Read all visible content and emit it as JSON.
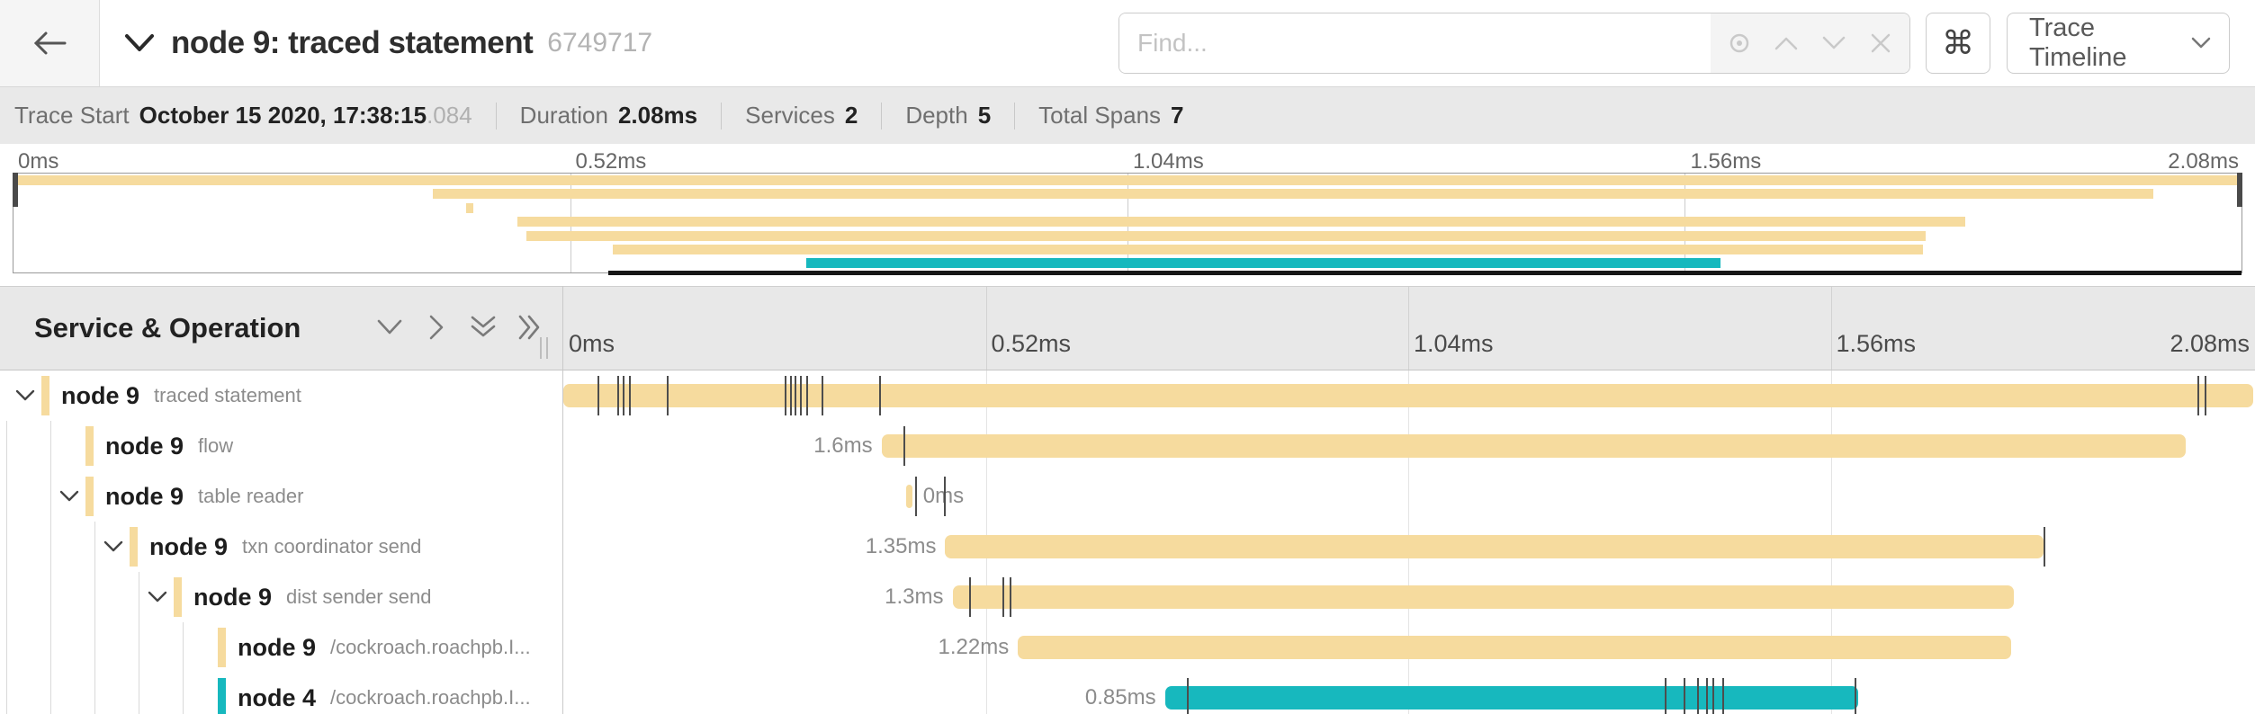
{
  "header": {
    "title": "node 9: traced statement",
    "trace_id": "6749717",
    "find_placeholder": "Find...",
    "view_selector_label": "Trace Timeline",
    "keyboard_shortcut_glyph": "⌘"
  },
  "summary": {
    "items": [
      {
        "label": "Trace Start",
        "value": "October 15 2020, 17:38:15",
        "suffix": ".084"
      },
      {
        "label": "Duration",
        "value": "2.08ms",
        "suffix": ""
      },
      {
        "label": "Services",
        "value": "2",
        "suffix": ""
      },
      {
        "label": "Depth",
        "value": "5",
        "suffix": ""
      },
      {
        "label": "Total Spans",
        "value": "7",
        "suffix": ""
      }
    ]
  },
  "ruler": {
    "labels": [
      "0ms",
      "0.52ms",
      "1.04ms",
      "1.56ms",
      "2.08ms"
    ],
    "positions_pct": [
      0,
      25,
      50,
      75,
      100
    ]
  },
  "left_header": {
    "title": "Service & Operation"
  },
  "colors": {
    "tan": "#f6db9e",
    "teal": "#17b8be"
  },
  "minimap": {
    "viewport_start_pct": 26.7
  },
  "spans": [
    {
      "service": "node 9",
      "operation": "traced statement",
      "depth": 0,
      "expandable": true,
      "color_key": "tan",
      "start_pct": 0,
      "width_pct": 100,
      "duration_label": "",
      "label_side": "none",
      "ticks_pct": [
        2.0,
        3.2,
        3.5,
        3.9,
        6.1,
        13.1,
        13.4,
        13.7,
        14.0,
        14.4,
        15.3,
        18.7,
        96.7,
        97.1
      ]
    },
    {
      "service": "node 9",
      "operation": "flow",
      "depth": 1,
      "expandable": false,
      "color_key": "tan",
      "start_pct": 18.83,
      "width_pct": 77.2,
      "duration_label": "1.6ms",
      "label_side": "left",
      "ticks_pct": [
        20.15
      ]
    },
    {
      "service": "node 9",
      "operation": "table reader",
      "depth": 1,
      "expandable": true,
      "color_key": "tan",
      "start_pct": 20.3,
      "width_pct": 0.35,
      "duration_label": "0ms",
      "label_side": "right",
      "ticks_pct": [
        20.8,
        22.5
      ]
    },
    {
      "service": "node 9",
      "operation": "txn coordinator send",
      "depth": 2,
      "expandable": true,
      "color_key": "tan",
      "start_pct": 22.6,
      "width_pct": 65.0,
      "duration_label": "1.35ms",
      "label_side": "left",
      "ticks_pct": [
        87.6
      ]
    },
    {
      "service": "node 9",
      "operation": "dist sender send",
      "depth": 3,
      "expandable": true,
      "color_key": "tan",
      "start_pct": 23.03,
      "width_pct": 62.8,
      "duration_label": "1.3ms",
      "label_side": "left",
      "ticks_pct": [
        24.0,
        26.0,
        26.4
      ]
    },
    {
      "service": "node 9",
      "operation": "/cockroach.roachpb.I...",
      "depth": 4,
      "expandable": false,
      "color_key": "tan",
      "start_pct": 26.9,
      "width_pct": 58.8,
      "duration_label": "1.22ms",
      "label_side": "left",
      "ticks_pct": []
    },
    {
      "service": "node 4",
      "operation": "/cockroach.roachpb.I...",
      "depth": 4,
      "expandable": false,
      "color_key": "teal",
      "start_pct": 35.6,
      "width_pct": 41.0,
      "duration_label": "0.85ms",
      "label_side": "left",
      "ticks_pct": [
        36.9,
        65.2,
        66.3,
        67.1,
        67.6,
        68.0,
        68.6,
        76.4
      ]
    }
  ]
}
